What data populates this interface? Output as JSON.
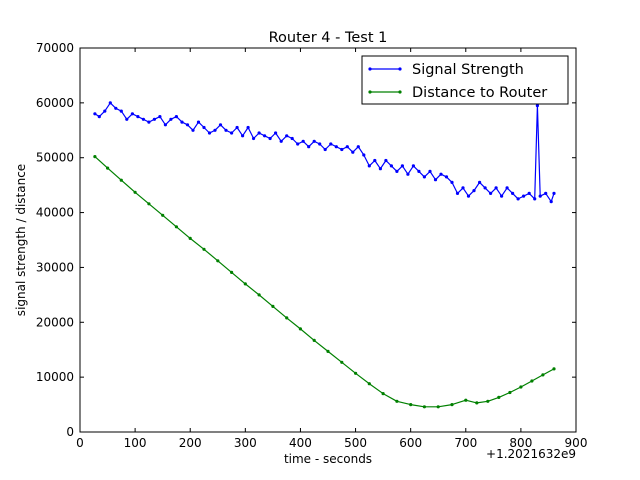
{
  "chart_data": {
    "type": "line",
    "title": "Router 4 - Test 1",
    "xlabel": "time - seconds",
    "ylabel": "signal strength / distance",
    "x_offset_label": "+1.2021632e9",
    "xlim": [
      0,
      900
    ],
    "ylim": [
      0,
      70000
    ],
    "xticks": [
      0,
      100,
      200,
      300,
      400,
      500,
      600,
      700,
      800,
      900
    ],
    "yticks": [
      0,
      10000,
      20000,
      30000,
      40000,
      50000,
      60000,
      70000
    ],
    "xtick_labels": [
      "0",
      "100",
      "200",
      "300",
      "400",
      "500",
      "600",
      "700",
      "800",
      "900"
    ],
    "ytick_labels": [
      "0",
      "10000",
      "20000",
      "30000",
      "40000",
      "50000",
      "60000",
      "70000"
    ],
    "grid": false,
    "legend_position": "top-right",
    "series": [
      {
        "name": "Signal Strength",
        "color": "#0000ff",
        "x": [
          27,
          35,
          45,
          55,
          65,
          75,
          85,
          95,
          105,
          115,
          125,
          135,
          145,
          155,
          165,
          175,
          185,
          195,
          205,
          215,
          225,
          235,
          245,
          255,
          265,
          275,
          285,
          295,
          305,
          315,
          325,
          335,
          345,
          355,
          365,
          375,
          385,
          395,
          405,
          415,
          425,
          435,
          445,
          455,
          465,
          475,
          485,
          495,
          505,
          515,
          525,
          535,
          545,
          555,
          565,
          575,
          585,
          595,
          605,
          615,
          625,
          635,
          645,
          655,
          665,
          675,
          685,
          695,
          705,
          715,
          725,
          735,
          745,
          755,
          765,
          775,
          785,
          795,
          805,
          815,
          825,
          830,
          835,
          845,
          855,
          860
        ],
        "y": [
          58000,
          57500,
          58500,
          60000,
          59000,
          58500,
          57000,
          58000,
          57500,
          57000,
          56500,
          57000,
          57500,
          56000,
          57000,
          57500,
          56500,
          56000,
          55000,
          56500,
          55500,
          54500,
          55000,
          56000,
          55000,
          54500,
          55500,
          54000,
          55500,
          53500,
          54500,
          54000,
          53500,
          54500,
          53000,
          54000,
          53500,
          52500,
          53000,
          52000,
          53000,
          52500,
          51500,
          52500,
          52000,
          51500,
          52000,
          51000,
          52000,
          50500,
          48500,
          49500,
          48000,
          49500,
          48500,
          47500,
          48500,
          47000,
          48500,
          47500,
          46500,
          47500,
          46000,
          47000,
          46500,
          45500,
          43500,
          44500,
          43000,
          44000,
          45500,
          44500,
          43500,
          44500,
          43000,
          44500,
          43500,
          42500,
          43000,
          43500,
          42500,
          59500,
          43000,
          43500,
          42000,
          43500
        ]
      },
      {
        "name": "Distance to Router",
        "color": "#008000",
        "x": [
          27,
          50,
          75,
          100,
          125,
          150,
          175,
          200,
          225,
          250,
          275,
          300,
          325,
          350,
          375,
          400,
          425,
          450,
          475,
          500,
          525,
          550,
          575,
          600,
          625,
          650,
          675,
          700,
          720,
          740,
          760,
          780,
          800,
          820,
          840,
          860
        ],
        "y": [
          50200,
          48100,
          45900,
          43700,
          41600,
          39500,
          37400,
          35300,
          33300,
          31200,
          29100,
          27000,
          25000,
          22900,
          20800,
          18800,
          16700,
          14700,
          12700,
          10700,
          8800,
          7000,
          5600,
          5000,
          4600,
          4600,
          5000,
          5800,
          5300,
          5600,
          6300,
          7200,
          8200,
          9300,
          10400,
          11500
        ]
      }
    ]
  }
}
